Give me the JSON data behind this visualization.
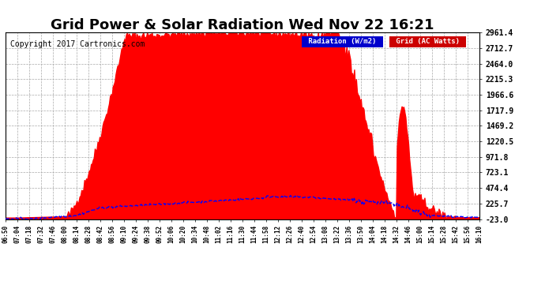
{
  "title": "Grid Power & Solar Radiation Wed Nov 22 16:21",
  "copyright": "Copyright 2017 Cartronics.com",
  "yticks": [
    2961.4,
    2712.7,
    2464.0,
    2215.3,
    1966.6,
    1717.9,
    1469.2,
    1220.5,
    971.8,
    723.1,
    474.4,
    225.7,
    -23.0
  ],
  "ymin": -23.0,
  "ymax": 2961.4,
  "xtick_labels": [
    "06:50",
    "07:04",
    "07:18",
    "07:32",
    "07:46",
    "08:00",
    "08:14",
    "08:28",
    "08:42",
    "08:56",
    "09:10",
    "09:24",
    "09:38",
    "09:52",
    "10:06",
    "10:20",
    "10:34",
    "10:48",
    "11:02",
    "11:16",
    "11:30",
    "11:44",
    "11:58",
    "12:12",
    "12:26",
    "12:40",
    "12:54",
    "13:08",
    "13:22",
    "13:36",
    "13:50",
    "14:04",
    "14:18",
    "14:32",
    "14:46",
    "15:00",
    "15:14",
    "15:28",
    "15:42",
    "15:56",
    "16:10"
  ],
  "bg_color": "#ffffff",
  "grid_color": "#aaaaaa",
  "fill_color": "#ff0000",
  "line_color": "#0000ff",
  "title_fontsize": 13,
  "copyright_fontsize": 8,
  "legend_radiation_bg": "#0000cc",
  "legend_grid_bg": "#cc0000",
  "legend_text_color": "#ffffff",
  "peak_power": 2961.4,
  "radiation_peak": 340.0
}
